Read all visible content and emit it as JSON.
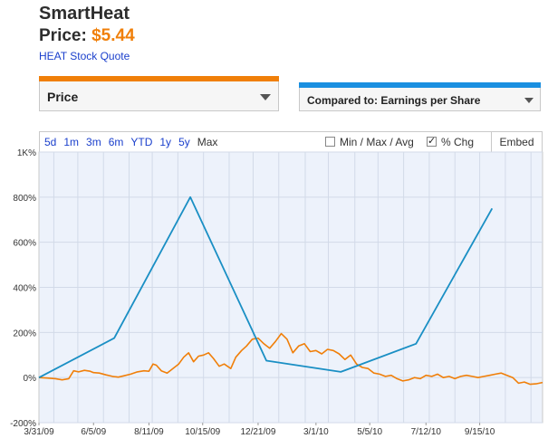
{
  "header": {
    "company": "SmartHeat",
    "price_label": "Price:",
    "price_value": "$5.44",
    "quote_link": "HEAT Stock Quote"
  },
  "controls": {
    "metric_select": "Price",
    "compare_select": "Compared to: Earnings per Share",
    "ranges": [
      "5d",
      "1m",
      "3m",
      "6m",
      "YTD",
      "1y",
      "5y",
      "Max"
    ],
    "selected_range": "Max",
    "minmax_label": "Min / Max / Avg",
    "minmax_checked": false,
    "pchg_label": "% Chg",
    "pchg_checked": true,
    "embed_label": "Embed"
  },
  "colors": {
    "price_series": "#f07f09",
    "eps_series": "#1a8fc4",
    "plot_background": "#edf2fb",
    "grid": "#d2dae8"
  },
  "chart_data": {
    "type": "line",
    "x_type": "date",
    "xlim": [
      "2009-03-31",
      "2010-11-30"
    ],
    "ylim": [
      -200,
      1000
    ],
    "y_ticks": [
      {
        "value": 1000,
        "label": "1K%"
      },
      {
        "value": 800,
        "label": "800%"
      },
      {
        "value": 600,
        "label": "600%"
      },
      {
        "value": 400,
        "label": "400%"
      },
      {
        "value": 200,
        "label": "200%"
      },
      {
        "value": 0,
        "label": "0%"
      },
      {
        "value": -200,
        "label": "-200%"
      }
    ],
    "x_ticks": [
      {
        "date": "2009-03-31",
        "label": "3/31/09"
      },
      {
        "date": "2009-06-05",
        "label": "6/5/09"
      },
      {
        "date": "2009-08-11",
        "label": "8/11/09"
      },
      {
        "date": "2009-10-15",
        "label": "10/15/09"
      },
      {
        "date": "2009-12-21",
        "label": "12/21/09"
      },
      {
        "date": "2010-03-01",
        "label": "3/1/10"
      },
      {
        "date": "2010-05-05",
        "label": "5/5/10"
      },
      {
        "date": "2010-07-12",
        "label": "7/12/10"
      },
      {
        "date": "2010-09-15",
        "label": "9/15/10"
      }
    ],
    "x_grid": [
      "2009-04-18",
      "2009-05-17",
      "2009-06-17",
      "2009-07-18",
      "2009-08-15",
      "2009-09-15",
      "2009-10-16",
      "2009-11-16",
      "2009-12-15",
      "2010-01-15",
      "2010-02-16",
      "2010-03-16",
      "2010-04-17",
      "2010-05-15",
      "2010-06-15",
      "2010-07-16",
      "2010-08-16",
      "2010-09-15",
      "2010-10-16",
      "2010-11-16"
    ],
    "grid": true,
    "legend": "none",
    "series": [
      {
        "key": "price",
        "points": [
          [
            "2009-03-31",
            0
          ],
          [
            "2009-04-10",
            -2
          ],
          [
            "2009-04-20",
            -5
          ],
          [
            "2009-04-28",
            -10
          ],
          [
            "2009-05-06",
            -5
          ],
          [
            "2009-05-12",
            30
          ],
          [
            "2009-05-18",
            25
          ],
          [
            "2009-05-25",
            32
          ],
          [
            "2009-06-01",
            28
          ],
          [
            "2009-06-05",
            22
          ],
          [
            "2009-06-12",
            20
          ],
          [
            "2009-06-20",
            12
          ],
          [
            "2009-06-28",
            5
          ],
          [
            "2009-07-05",
            2
          ],
          [
            "2009-07-12",
            8
          ],
          [
            "2009-07-20",
            15
          ],
          [
            "2009-07-28",
            25
          ],
          [
            "2009-08-05",
            30
          ],
          [
            "2009-08-11",
            28
          ],
          [
            "2009-08-16",
            60
          ],
          [
            "2009-08-20",
            55
          ],
          [
            "2009-08-26",
            30
          ],
          [
            "2009-09-02",
            20
          ],
          [
            "2009-09-09",
            40
          ],
          [
            "2009-09-16",
            60
          ],
          [
            "2009-09-22",
            90
          ],
          [
            "2009-09-28",
            110
          ],
          [
            "2009-10-04",
            70
          ],
          [
            "2009-10-10",
            95
          ],
          [
            "2009-10-16",
            100
          ],
          [
            "2009-10-22",
            110
          ],
          [
            "2009-10-28",
            85
          ],
          [
            "2009-11-04",
            50
          ],
          [
            "2009-11-10",
            60
          ],
          [
            "2009-11-18",
            40
          ],
          [
            "2009-11-24",
            90
          ],
          [
            "2009-12-01",
            120
          ],
          [
            "2009-12-07",
            140
          ],
          [
            "2009-12-14",
            170
          ],
          [
            "2009-12-21",
            175
          ],
          [
            "2009-12-28",
            150
          ],
          [
            "2010-01-04",
            130
          ],
          [
            "2010-01-11",
            160
          ],
          [
            "2010-01-18",
            195
          ],
          [
            "2010-01-25",
            170
          ],
          [
            "2010-02-01",
            110
          ],
          [
            "2010-02-08",
            140
          ],
          [
            "2010-02-15",
            150
          ],
          [
            "2010-02-22",
            115
          ],
          [
            "2010-03-01",
            120
          ],
          [
            "2010-03-08",
            105
          ],
          [
            "2010-03-15",
            125
          ],
          [
            "2010-03-22",
            120
          ],
          [
            "2010-03-29",
            105
          ],
          [
            "2010-04-05",
            80
          ],
          [
            "2010-04-12",
            100
          ],
          [
            "2010-04-19",
            60
          ],
          [
            "2010-04-26",
            45
          ],
          [
            "2010-05-03",
            40
          ],
          [
            "2010-05-10",
            20
          ],
          [
            "2010-05-17",
            15
          ],
          [
            "2010-05-24",
            5
          ],
          [
            "2010-05-31",
            10
          ],
          [
            "2010-06-07",
            -5
          ],
          [
            "2010-06-14",
            -15
          ],
          [
            "2010-06-21",
            -10
          ],
          [
            "2010-06-28",
            0
          ],
          [
            "2010-07-05",
            -5
          ],
          [
            "2010-07-12",
            10
          ],
          [
            "2010-07-19",
            5
          ],
          [
            "2010-07-26",
            15
          ],
          [
            "2010-08-02",
            0
          ],
          [
            "2010-08-09",
            5
          ],
          [
            "2010-08-16",
            -5
          ],
          [
            "2010-08-23",
            5
          ],
          [
            "2010-08-30",
            10
          ],
          [
            "2010-09-06",
            5
          ],
          [
            "2010-09-13",
            0
          ],
          [
            "2010-09-20",
            5
          ],
          [
            "2010-09-27",
            10
          ],
          [
            "2010-10-04",
            15
          ],
          [
            "2010-10-11",
            20
          ],
          [
            "2010-10-18",
            10
          ],
          [
            "2010-10-25",
            0
          ],
          [
            "2010-11-01",
            -25
          ],
          [
            "2010-11-08",
            -20
          ],
          [
            "2010-11-15",
            -30
          ],
          [
            "2010-11-22",
            -28
          ],
          [
            "2010-11-30",
            -22
          ]
        ]
      },
      {
        "key": "eps",
        "points": [
          [
            "2009-03-31",
            0
          ],
          [
            "2009-06-30",
            175
          ],
          [
            "2009-09-30",
            800
          ],
          [
            "2009-12-31",
            75
          ],
          [
            "2010-03-31",
            25
          ],
          [
            "2010-06-30",
            150
          ],
          [
            "2010-09-30",
            750
          ]
        ]
      }
    ]
  }
}
